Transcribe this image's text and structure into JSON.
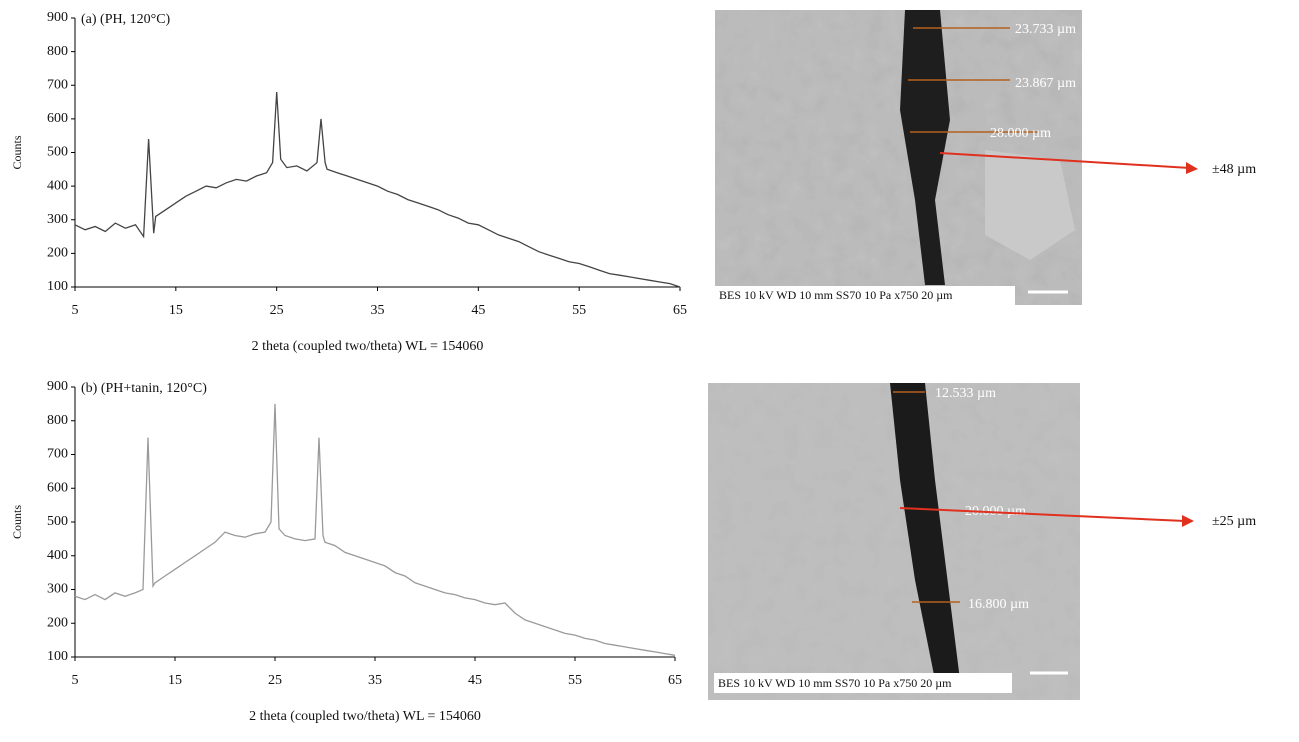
{
  "chart_data": [
    {
      "type": "line",
      "title": "(a)  (PH, 120°C)",
      "y_label": "Counts",
      "x_label": "2 theta (coupled two/theta) WL = 154060",
      "color": "#444444",
      "x": [
        5,
        6,
        7,
        8,
        9,
        10,
        11,
        11.8,
        12.3,
        12.8,
        13,
        14,
        15,
        16,
        17,
        18,
        19,
        20,
        21,
        22,
        23,
        24,
        24.6,
        25,
        25.4,
        26,
        27,
        28,
        29,
        29.4,
        29.8,
        30,
        31,
        32,
        33,
        34,
        35,
        36,
        37,
        38,
        39,
        40,
        41,
        42,
        43,
        44,
        45,
        46,
        47,
        48,
        49,
        50,
        51,
        52,
        53,
        54,
        55,
        56,
        57,
        58,
        59,
        60,
        61,
        62,
        63,
        64,
        65
      ],
      "values": [
        285,
        270,
        280,
        265,
        290,
        275,
        285,
        250,
        540,
        260,
        310,
        330,
        350,
        370,
        385,
        400,
        395,
        410,
        420,
        415,
        430,
        440,
        470,
        680,
        480,
        455,
        460,
        445,
        470,
        600,
        470,
        450,
        440,
        430,
        420,
        410,
        400,
        385,
        375,
        360,
        350,
        340,
        330,
        315,
        305,
        290,
        285,
        270,
        255,
        245,
        235,
        220,
        205,
        195,
        185,
        175,
        170,
        160,
        150,
        140,
        135,
        130,
        125,
        120,
        115,
        110,
        100
      ],
      "xlim": [
        5,
        65
      ],
      "xticks": [
        5,
        15,
        25,
        35,
        45,
        55,
        65
      ],
      "ylim": [
        100,
        900
      ],
      "yticks": [
        100,
        200,
        300,
        400,
        500,
        600,
        700,
        800,
        900
      ]
    },
    {
      "type": "line",
      "title": "(b)  (PH+tanin, 120°C)",
      "y_label": "Counts",
      "x_label": "2 theta (coupled two/theta) WL = 154060",
      "color": "#9a9a9a",
      "x": [
        5,
        6,
        7,
        8,
        9,
        10,
        11,
        11.8,
        12.3,
        12.8,
        13,
        14,
        15,
        16,
        17,
        18,
        19,
        20,
        21,
        22,
        23,
        24,
        24.6,
        25,
        25.4,
        26,
        27,
        28,
        29,
        29.4,
        29.8,
        30,
        31,
        32,
        33,
        34,
        35,
        36,
        37,
        38,
        39,
        40,
        41,
        42,
        43,
        44,
        45,
        46,
        47,
        48,
        49,
        50,
        51,
        52,
        53,
        54,
        55,
        56,
        57,
        58,
        59,
        60,
        61,
        62,
        63,
        64,
        65
      ],
      "values": [
        280,
        270,
        285,
        270,
        290,
        280,
        290,
        300,
        750,
        310,
        320,
        340,
        360,
        380,
        400,
        420,
        440,
        470,
        460,
        455,
        465,
        470,
        500,
        850,
        480,
        460,
        450,
        445,
        450,
        750,
        460,
        440,
        430,
        410,
        400,
        390,
        380,
        370,
        350,
        340,
        320,
        310,
        300,
        290,
        285,
        275,
        270,
        260,
        255,
        260,
        230,
        210,
        200,
        190,
        180,
        170,
        165,
        155,
        150,
        140,
        135,
        130,
        125,
        120,
        115,
        110,
        105
      ],
      "xlim": [
        5,
        65
      ],
      "xticks": [
        5,
        15,
        25,
        35,
        45,
        55,
        65
      ],
      "ylim": [
        100,
        900
      ],
      "yticks": [
        100,
        200,
        300,
        400,
        500,
        600,
        700,
        800,
        900
      ]
    }
  ],
  "images": [
    {
      "measurements": [
        "23.733 µm",
        "23.867 µm",
        "28.000 µm"
      ],
      "info": "BES 10 kV  WD 10 mm  SS70  10 Pa x750 20 µm",
      "annotation": "±48 µm"
    },
    {
      "measurements": [
        "12.533 µm",
        "20.000 µm",
        "16.800 µm"
      ],
      "info": "BES 10 kV  WD 10 mm  SS70  10 Pa x750 20 µm",
      "annotation": "±25 µm"
    }
  ]
}
